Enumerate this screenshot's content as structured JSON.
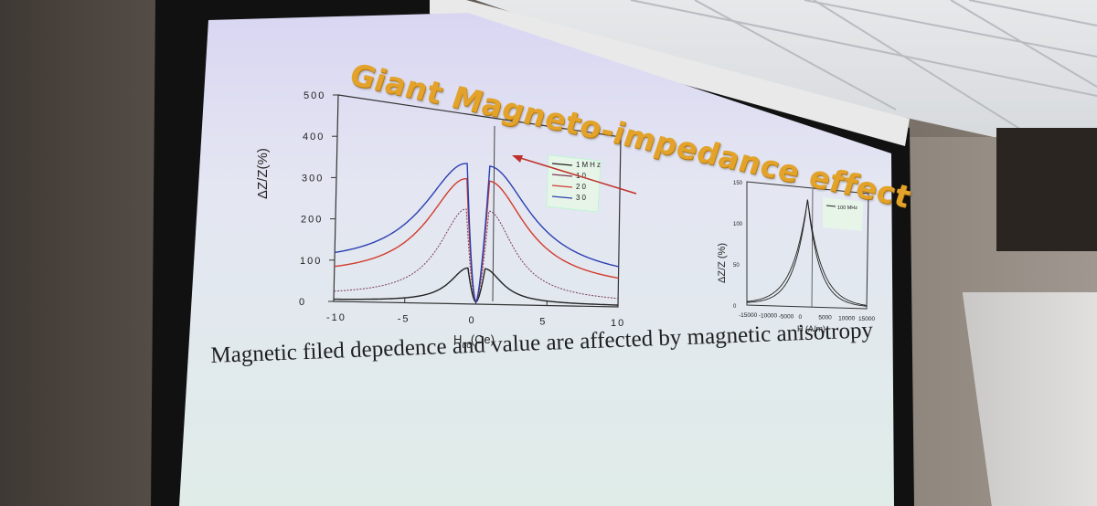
{
  "slide": {
    "title": "Giant Magneto-impedance effect",
    "caption": "Magnetic filed depedence and value are affected by magnetic anisotropy"
  },
  "chart_data": [
    {
      "type": "line",
      "ylabel": "ΔZ/Z(%)",
      "xlabel_main": "H",
      "xlabel_sub": "dc",
      "xlabel_unit": "(Oe)",
      "x_ticks": [
        "-10",
        "-5",
        "0",
        "5",
        "10"
      ],
      "y_ticks": [
        "0",
        "100",
        "200",
        "300",
        "400",
        "500"
      ],
      "xlim": [
        -10,
        10
      ],
      "ylim": [
        0,
        500
      ],
      "legend": [
        "1MHz",
        "10",
        "20",
        "30"
      ],
      "series": [
        {
          "name": "1MHz",
          "color": "#222222",
          "peak": 95,
          "peak_x": 0.6,
          "tail": 3,
          "width": 1.5
        },
        {
          "name": "10",
          "color": "#7a3a5a",
          "peak": 250,
          "peak_x": 0.8,
          "tail": 12,
          "width": 2.2
        },
        {
          "name": "20",
          "color": "#d23a2a",
          "peak": 330,
          "peak_x": 0.8,
          "tail": 55,
          "width": 3.2
        },
        {
          "name": "30",
          "color": "#2a3fb0",
          "peak": 370,
          "peak_x": 0.8,
          "tail": 80,
          "width": 3.6
        }
      ]
    },
    {
      "type": "line",
      "ylabel": "ΔZ/Z (%)",
      "xlabel": "H (A/m)",
      "x_ticks": [
        "-15000",
        "-10000",
        "-5000",
        "0",
        "5000",
        "10000",
        "15000"
      ],
      "y_ticks": [
        "0",
        "50",
        "100",
        "150"
      ],
      "xlim": [
        -15000,
        15000
      ],
      "ylim": [
        0,
        150
      ],
      "legend": [
        "100 MHz"
      ],
      "series": [
        {
          "name": "100 MHz",
          "color": "#222222",
          "peak": 135,
          "tail": 2
        }
      ]
    }
  ]
}
